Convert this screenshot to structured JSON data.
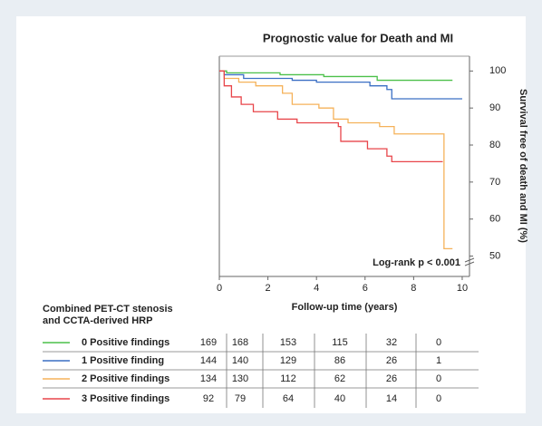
{
  "chart_data": {
    "type": "step",
    "title": "Prognostic value for Death and MI",
    "x_label": "Follow-up time (years)",
    "y_label": "Survival free of death and MI (%)",
    "annotation": "Log-rank p < 0.001",
    "table_title": [
      "Combined PET-CT stenosis",
      "and CCTA-derived HRP"
    ],
    "xlim": [
      0,
      10.3
    ],
    "xticks": [
      0,
      2,
      4,
      6,
      8,
      10
    ],
    "ylim": [
      44.5,
      104
    ],
    "yticks": [
      50,
      60,
      70,
      80,
      90,
      100
    ],
    "series": [
      {
        "name": "0 Positive findings",
        "color": "#4cc04a",
        "x": [
          0,
          0.3,
          2.5,
          4.3,
          6.5,
          9.6
        ],
        "values": [
          100,
          99.5,
          99,
          98.5,
          97.5,
          97.5
        ],
        "at_risk": [
          169,
          168,
          153,
          115,
          32,
          0
        ]
      },
      {
        "name": "1 Positive finding",
        "color": "#3a6fc4",
        "x": [
          0,
          0.2,
          1,
          3,
          4,
          6.2,
          6.9,
          7.1,
          10
        ],
        "values": [
          100,
          99,
          98,
          97.5,
          97,
          96,
          95,
          92.5,
          92.5
        ],
        "at_risk": [
          144,
          140,
          129,
          86,
          26,
          1
        ]
      },
      {
        "name": "2 Positive findings",
        "color": "#f5b25a",
        "x": [
          0,
          0.2,
          0.8,
          1.5,
          2.6,
          3.0,
          4.1,
          4.7,
          5.3,
          6.6,
          7.2,
          9.2,
          9.25,
          9.6
        ],
        "values": [
          100,
          98,
          97,
          96,
          94,
          91,
          90,
          87,
          86,
          85,
          83,
          83,
          52,
          52
        ],
        "at_risk": [
          134,
          130,
          112,
          62,
          26,
          0
        ]
      },
      {
        "name": "3 Positive findings",
        "color": "#e8454a",
        "x": [
          0,
          0.2,
          0.5,
          0.9,
          1.4,
          2.4,
          3.2,
          4.9,
          5.0,
          6.1,
          6.9,
          7.1,
          9.2
        ],
        "values": [
          100,
          96,
          93,
          91,
          89,
          87,
          86,
          85,
          81,
          79,
          77,
          75.5,
          75.5
        ],
        "at_risk": [
          92,
          79,
          64,
          40,
          14,
          0
        ]
      }
    ]
  }
}
